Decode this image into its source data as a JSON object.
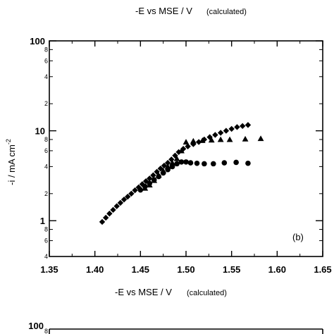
{
  "chart_data": {
    "type": "scatter",
    "title": "",
    "panel_label": "(b)",
    "top_axis_label": "-E vs MSE  /  V",
    "top_axis_note": "(calculated)",
    "xlabel": "-E vs MSE  /  V",
    "xlabel_note": "(calculated)",
    "ylabel": "-i  /  mA cm",
    "ylabel_sup": "-2",
    "xlim": [
      1.35,
      1.65
    ],
    "ylim": [
      0.4,
      100
    ],
    "y_scale": "log",
    "x_ticks": [
      "1.35",
      "1.40",
      "1.45",
      "1.50",
      "1.55",
      "1.60",
      "1.65"
    ],
    "y_major_ticks": [
      "1",
      "10",
      "100"
    ],
    "y_minor_ticks": [
      "4",
      "6",
      "8",
      "2",
      "4",
      "6",
      "8",
      "2",
      "4",
      "6",
      "8"
    ],
    "grid": false,
    "series": [
      {
        "marker": "diamond",
        "color": "#000000",
        "x": [
          1.408,
          1.412,
          1.416,
          1.42,
          1.424,
          1.428,
          1.432,
          1.436,
          1.44,
          1.444,
          1.448,
          1.452,
          1.456,
          1.46,
          1.464,
          1.468,
          1.472,
          1.476,
          1.48,
          1.484,
          1.488,
          1.492,
          1.497,
          1.502,
          1.508,
          1.514,
          1.52,
          1.526,
          1.532,
          1.538,
          1.544,
          1.55,
          1.556,
          1.562,
          1.568
        ],
        "y": [
          0.97,
          1.08,
          1.2,
          1.32,
          1.45,
          1.58,
          1.72,
          1.85,
          2.0,
          2.18,
          2.35,
          2.55,
          2.75,
          2.95,
          3.2,
          3.5,
          3.8,
          4.1,
          4.4,
          4.8,
          5.3,
          5.8,
          6.3,
          6.7,
          7.1,
          7.5,
          8.0,
          8.5,
          9.0,
          9.5,
          10.0,
          10.5,
          11.0,
          11.3,
          11.6
        ]
      },
      {
        "marker": "triangle",
        "color": "#000000",
        "x": [
          1.455,
          1.46,
          1.465,
          1.47,
          1.475,
          1.48,
          1.485,
          1.49,
          1.495,
          1.5,
          1.508,
          1.518,
          1.528,
          1.538,
          1.548,
          1.565,
          1.582
        ],
        "y": [
          2.3,
          2.5,
          2.8,
          3.2,
          3.6,
          4.0,
          4.4,
          4.9,
          6.0,
          7.5,
          7.7,
          7.8,
          7.9,
          8.0,
          8.0,
          8.1,
          8.2
        ]
      },
      {
        "marker": "circle",
        "color": "#000000",
        "x": [
          1.45,
          1.455,
          1.46,
          1.465,
          1.47,
          1.475,
          1.48,
          1.485,
          1.49,
          1.495,
          1.5,
          1.505,
          1.512,
          1.52,
          1.53,
          1.542,
          1.555,
          1.568
        ],
        "y": [
          2.2,
          2.4,
          2.6,
          2.85,
          3.1,
          3.4,
          3.7,
          4.0,
          4.3,
          4.5,
          4.5,
          4.4,
          4.35,
          4.3,
          4.3,
          4.4,
          4.45,
          4.35
        ]
      }
    ],
    "lower_panel_partial": {
      "y_tick_top": "100",
      "y_minor_top": "8"
    }
  }
}
